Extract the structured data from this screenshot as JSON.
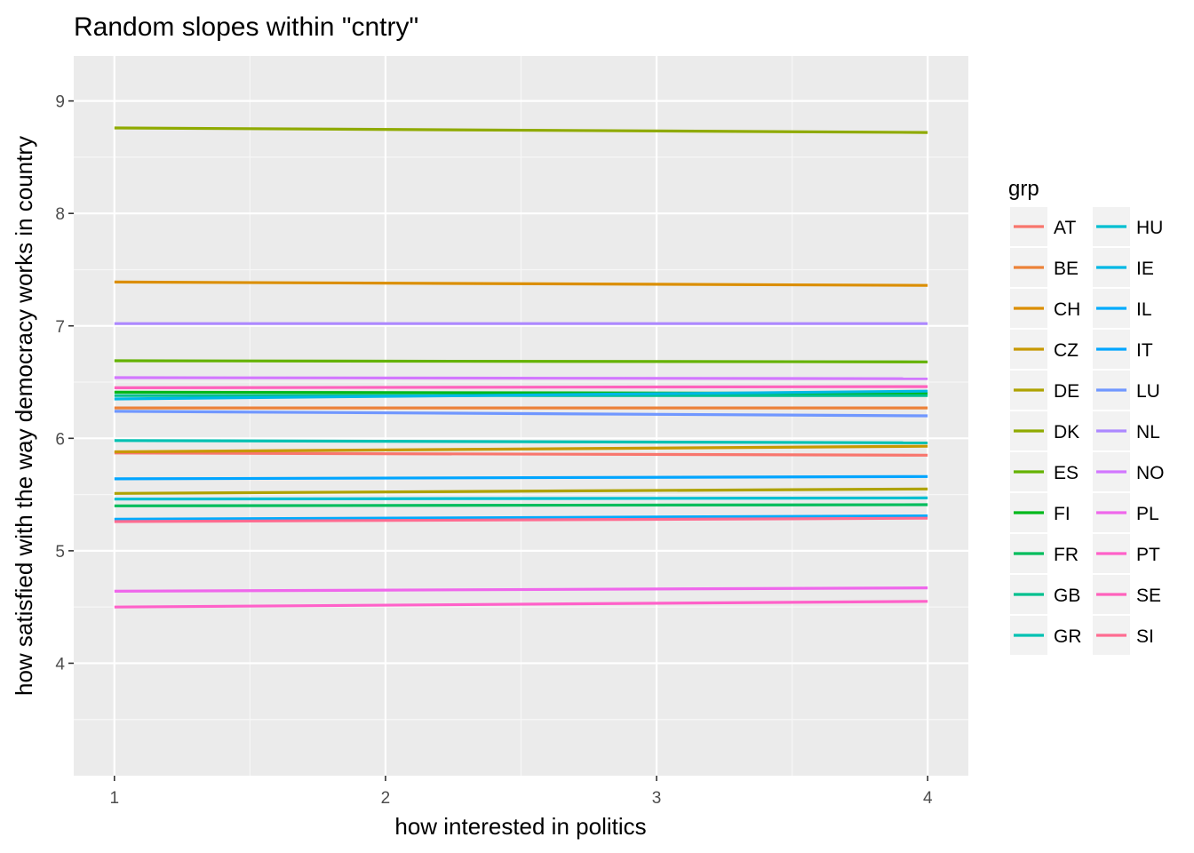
{
  "chart_data": {
    "type": "line",
    "title": "Random slopes within \"cntry\"",
    "xlabel": "how interested in politics",
    "ylabel": "how satisfied with the way democracy works in country",
    "xlim": [
      0.85,
      4.15
    ],
    "ylim": [
      3.0,
      9.4
    ],
    "x_ticks": [
      1,
      2,
      3,
      4
    ],
    "y_ticks": [
      4,
      5,
      6,
      7,
      8,
      9
    ],
    "grid": true,
    "legend_title": "grp",
    "legend_position": "right",
    "x": [
      1,
      4
    ],
    "series": [
      {
        "name": "AT",
        "color": "#F8766D",
        "values": [
          5.87,
          5.85
        ]
      },
      {
        "name": "BE",
        "color": "#EC8239",
        "values": [
          6.27,
          6.27
        ]
      },
      {
        "name": "CH",
        "color": "#DB8E00",
        "values": [
          7.39,
          7.36
        ]
      },
      {
        "name": "CZ",
        "color": "#C79800",
        "values": [
          5.88,
          5.93
        ]
      },
      {
        "name": "DE",
        "color": "#AEA200",
        "values": [
          5.51,
          5.55
        ]
      },
      {
        "name": "DK",
        "color": "#8FAA00",
        "values": [
          8.76,
          8.72
        ]
      },
      {
        "name": "ES",
        "color": "#64B200",
        "values": [
          6.69,
          6.68
        ]
      },
      {
        "name": "FI",
        "color": "#00B81B",
        "values": [
          6.41,
          6.4
        ]
      },
      {
        "name": "FR",
        "color": "#00BD5C",
        "values": [
          5.4,
          5.41
        ]
      },
      {
        "name": "GB",
        "color": "#00C08E",
        "values": [
          6.38,
          6.38
        ]
      },
      {
        "name": "GR",
        "color": "#00C1B2",
        "values": [
          5.98,
          5.96
        ]
      },
      {
        "name": "HU",
        "color": "#00BFD1",
        "values": [
          5.46,
          5.47
        ]
      },
      {
        "name": "IE",
        "color": "#00B8E5",
        "values": [
          6.35,
          6.42
        ]
      },
      {
        "name": "IL",
        "color": "#00ABFD",
        "values": [
          5.28,
          5.31
        ]
      },
      {
        "name": "IT",
        "color": "#00A5FF",
        "values": [
          5.64,
          5.66
        ]
      },
      {
        "name": "LU",
        "color": "#7097FF",
        "values": [
          6.24,
          6.2
        ]
      },
      {
        "name": "NL",
        "color": "#AC88FF",
        "values": [
          7.02,
          7.02
        ]
      },
      {
        "name": "NO",
        "color": "#D277FF",
        "values": [
          6.54,
          6.53
        ]
      },
      {
        "name": "PL",
        "color": "#EF67EB",
        "values": [
          4.64,
          4.67
        ]
      },
      {
        "name": "PT",
        "color": "#FF61C9",
        "values": [
          4.5,
          4.55
        ]
      },
      {
        "name": "SE",
        "color": "#FF62BC",
        "values": [
          6.45,
          6.46
        ]
      },
      {
        "name": "SI",
        "color": "#FF6C91",
        "values": [
          5.26,
          5.29
        ]
      }
    ]
  }
}
